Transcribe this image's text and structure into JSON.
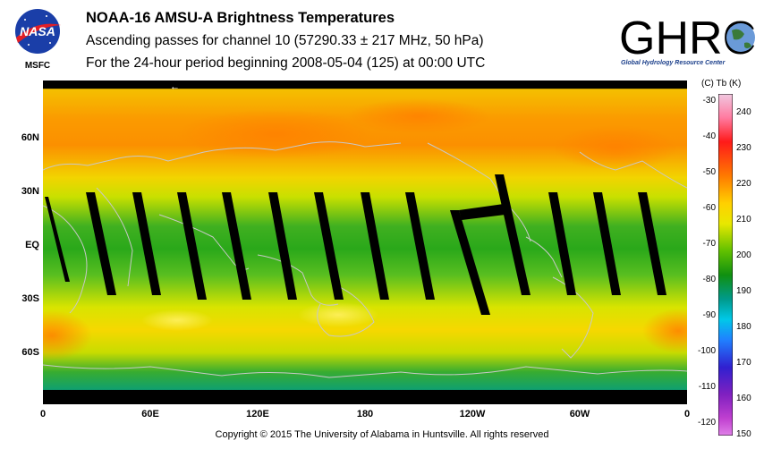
{
  "header": {
    "title": "NOAA-16 AMSU-A Brightness Temperatures",
    "subtitle_line1": "Ascending passes for channel 10 (57290.33 ± 217 MHz, 50 hPa)",
    "subtitle_line2": "For the 24-hour period beginning 2008-05-04 (125) at 00:00 UTC"
  },
  "logos": {
    "nasa_text": "NASA",
    "nasa_center": "MSFC",
    "ghrc_text": "GHRC",
    "ghrc_full": "Global Hydrology Resource Center"
  },
  "map": {
    "lat_labels": [
      "60N",
      "30N",
      "EQ",
      "30S",
      "60S"
    ],
    "lon_labels": [
      "0",
      "60E",
      "120E",
      "180",
      "120W",
      "60W",
      "0"
    ],
    "direction_arrow": "←",
    "colors": {
      "coastline": "#c8c8c8",
      "warm_orange": "#ff8c00",
      "yellow": "#f0e000",
      "green": "#1fa81f",
      "teal": "#009a7a",
      "swath_gap": "#000000"
    }
  },
  "colorbar": {
    "header_c": "(C)",
    "header_tb": "Tb",
    "header_k": "(K)",
    "celsius_ticks": [
      "-30",
      "-40",
      "-50",
      "-60",
      "-70",
      "-80",
      "-90",
      "-100",
      "-110",
      "-120"
    ],
    "kelvin_ticks": [
      "240",
      "230",
      "220",
      "210",
      "200",
      "190",
      "180",
      "170",
      "160",
      "150"
    ]
  },
  "footer": {
    "copyright": "Copyright © 2015 The University of Alabama in Huntsville.  All rights reserved"
  }
}
